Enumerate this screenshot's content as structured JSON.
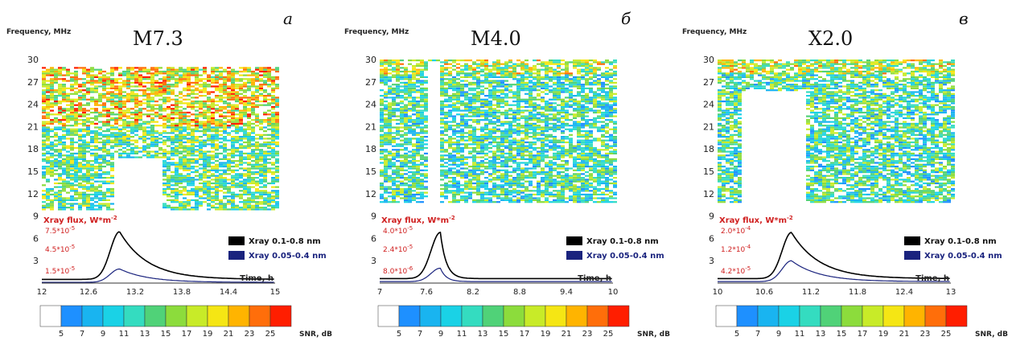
{
  "chart_data": [
    {
      "type": "heatmap",
      "panel_letter": "а",
      "title": "M7.3",
      "ylabel": "Frequency, MHz",
      "yticks": [
        "30",
        "27",
        "24",
        "21",
        "18",
        "15",
        "12",
        "9",
        "6",
        "3"
      ],
      "ylim": [
        0,
        30
      ],
      "xlim": [
        12,
        15
      ],
      "xticks": [
        "12",
        "12.6",
        "13.2",
        "13.8",
        "14.4",
        "15"
      ],
      "xlabel": "Time, h",
      "flux_label": "Xray flux, W*m",
      "flux_exp": "-2",
      "flux_ticks": [
        {
          "mant": "7.5*10",
          "exp": "-5",
          "color": "#d02020"
        },
        {
          "mant": "4.5*10",
          "exp": "-5",
          "color": "#d02020"
        },
        {
          "mant": "1.5*10",
          "exp": "-5",
          "color": "#d02020"
        }
      ],
      "series": [
        {
          "name": "Xray 0.1-0.8 nm",
          "color": "#000000",
          "peak_x": 13.0,
          "peak_y": 6.9,
          "base_y": 0.5
        },
        {
          "name": "Xray 0.05-0.4 nm",
          "color": "#1a237e",
          "peak_x": 13.0,
          "peak_y": 1.9,
          "base_y": 0.1
        }
      ],
      "heat": {
        "f_min": 10,
        "f_max": 29,
        "gap_x": [
          12.9,
          13.5
        ],
        "gap_below": 17
      }
    },
    {
      "type": "heatmap",
      "panel_letter": "б",
      "title": "M4.0",
      "ylabel": "Frequency, MHz",
      "yticks": [
        "30",
        "27",
        "24",
        "21",
        "18",
        "15",
        "12",
        "9",
        "6",
        "3"
      ],
      "ylim": [
        0,
        30
      ],
      "xlim": [
        7,
        10
      ],
      "xticks": [
        "7",
        "7.6",
        "8.2",
        "8.8",
        "9.4",
        "10"
      ],
      "xlabel": "Time, h",
      "flux_label": "Xray flux, W*m",
      "flux_exp": "-2",
      "flux_ticks": [
        {
          "mant": "4.0*10",
          "exp": "-5",
          "color": "#d02020"
        },
        {
          "mant": "2.4*10",
          "exp": "-5",
          "color": "#d02020"
        },
        {
          "mant": "8.0*10",
          "exp": "-6",
          "color": "#d02020"
        }
      ],
      "series": [
        {
          "name": "Xray 0.1-0.8 nm",
          "color": "#000000",
          "peak_x": 7.78,
          "peak_y": 6.8,
          "base_y": 0.6
        },
        {
          "name": "Xray 0.05-0.4 nm",
          "color": "#1a237e",
          "peak_x": 7.78,
          "peak_y": 2.0,
          "base_y": 0.2
        }
      ],
      "heat": {
        "f_min": 11,
        "f_max": 30,
        "gap_x": [
          7.6,
          7.75
        ],
        "gap_below": 30
      }
    },
    {
      "type": "heatmap",
      "panel_letter": "в",
      "title": "X2.0",
      "ylabel": "Frequency, MHz",
      "yticks": [
        "30",
        "27",
        "24",
        "21",
        "18",
        "15",
        "12",
        "9",
        "6",
        "3"
      ],
      "ylim": [
        0,
        30
      ],
      "xlim": [
        10,
        13
      ],
      "xticks": [
        "10",
        "10.6",
        "11.2",
        "11.8",
        "12.4",
        "13"
      ],
      "xlabel": "Time, h",
      "flux_label": "Xray flux, W*m",
      "flux_exp": "-2",
      "flux_ticks": [
        {
          "mant": "2.0*10",
          "exp": "-4",
          "color": "#d02020"
        },
        {
          "mant": "1.2*10",
          "exp": "-4",
          "color": "#d02020"
        },
        {
          "mant": "4.2*10",
          "exp": "-5",
          "color": "#d02020"
        }
      ],
      "series": [
        {
          "name": "Xray 0.1-0.8 nm",
          "color": "#000000",
          "peak_x": 10.95,
          "peak_y": 6.8,
          "base_y": 0.6
        },
        {
          "name": "Xray 0.05-0.4 nm",
          "color": "#1a237e",
          "peak_x": 10.95,
          "peak_y": 3.0,
          "base_y": 0.2
        }
      ],
      "heat": {
        "f_min": 11,
        "f_max": 30,
        "gap_x": [
          10.3,
          11.1
        ],
        "gap_below": 26
      }
    }
  ],
  "colorbar": {
    "values": [
      "5",
      "7",
      "9",
      "11",
      "13",
      "15",
      "17",
      "19",
      "21",
      "23",
      "25"
    ],
    "colors": [
      "#ffffff",
      "#1e90ff",
      "#19b4f0",
      "#1ad2e6",
      "#34dcc0",
      "#50d278",
      "#8cdc3c",
      "#c8eb28",
      "#f5e614",
      "#ffb400",
      "#ff6e0a",
      "#ff1e00"
    ],
    "label": "SNR, dB"
  }
}
